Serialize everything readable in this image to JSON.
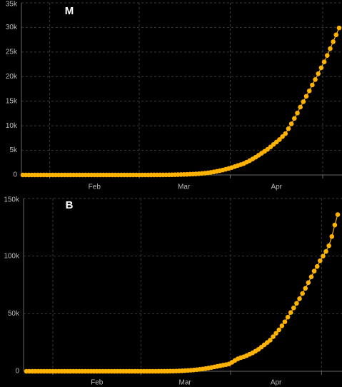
{
  "chart_data": [
    {
      "type": "line",
      "title": "M",
      "color": "#ffb300",
      "grid": true,
      "ylim": [
        0,
        35000
      ],
      "yticks": [
        0,
        {
          "value": 5000,
          "label": "5k"
        },
        {
          "value": 10000,
          "label": "10k"
        },
        {
          "value": 15000,
          "label": "15k"
        },
        {
          "value": 20000,
          "label": "20k"
        },
        {
          "value": 25000,
          "label": "25k"
        },
        {
          "value": 30000,
          "label": "30k"
        },
        {
          "value": 35000,
          "label": "35k"
        }
      ],
      "categories": [
        null,
        null,
        null,
        null,
        null,
        null,
        null,
        null,
        null,
        null,
        null,
        null,
        null,
        null,
        null,
        null,
        null,
        null,
        null,
        null,
        null,
        null,
        null,
        null,
        "Feb",
        null,
        null,
        null,
        null,
        null,
        null,
        null,
        null,
        null,
        null,
        null,
        null,
        null,
        null,
        null,
        null,
        null,
        null,
        null,
        null,
        null,
        null,
        null,
        null,
        null,
        null,
        null,
        null,
        null,
        "Mar",
        null,
        null,
        null,
        null,
        null,
        null,
        null,
        null,
        null,
        null,
        null,
        null,
        null,
        null,
        null,
        null,
        null,
        null,
        null,
        null,
        null,
        null,
        null,
        null,
        null,
        null,
        null,
        null,
        null,
        null,
        "Apr",
        null,
        null,
        null,
        null,
        null,
        null,
        null,
        null,
        null,
        null,
        null,
        null,
        null,
        null,
        null,
        null,
        null,
        null,
        null,
        null,
        null
      ],
      "values": [
        0,
        0,
        0,
        0,
        0,
        0,
        0,
        0,
        0,
        0,
        0,
        0,
        0,
        0,
        0,
        0,
        0,
        0,
        0,
        0,
        0,
        0,
        0,
        0,
        0,
        0,
        0,
        0,
        0,
        0,
        0,
        0,
        0,
        0,
        0,
        0,
        0,
        0,
        0,
        0,
        0,
        0,
        1,
        2,
        3,
        5,
        8,
        12,
        18,
        25,
        35,
        50,
        65,
        80,
        100,
        120,
        150,
        180,
        215,
        255,
        300,
        360,
        430,
        520,
        620,
        730,
        860,
        1000,
        1150,
        1320,
        1500,
        1700,
        1900,
        2100,
        2300,
        2600,
        2900,
        3250,
        3600,
        4000,
        4400,
        4800,
        5200,
        5700,
        6200,
        6700,
        7200,
        7800,
        8400,
        9400,
        10400,
        11500,
        12600,
        13800,
        14900,
        16000,
        17100,
        18300,
        19400,
        20600,
        21800,
        23000,
        24300,
        25700,
        27100,
        28500,
        29900
      ]
    },
    {
      "type": "line",
      "title": "B",
      "color": "#ffb300",
      "grid": true,
      "ylim": [
        0,
        150000
      ],
      "yticks": [
        0,
        {
          "value": 50000,
          "label": "50k"
        },
        {
          "value": 100000,
          "label": "100k"
        },
        {
          "value": 150000,
          "label": "150k"
        }
      ],
      "categories": [
        null,
        null,
        null,
        null,
        null,
        null,
        null,
        null,
        null,
        null,
        null,
        null,
        null,
        null,
        null,
        null,
        null,
        null,
        null,
        null,
        null,
        null,
        null,
        null,
        "Feb",
        null,
        null,
        null,
        null,
        null,
        null,
        null,
        null,
        null,
        null,
        null,
        null,
        null,
        null,
        null,
        null,
        null,
        null,
        null,
        null,
        null,
        null,
        null,
        null,
        null,
        null,
        null,
        null,
        null,
        "Mar",
        null,
        null,
        null,
        null,
        null,
        null,
        null,
        null,
        null,
        null,
        null,
        null,
        null,
        null,
        null,
        null,
        null,
        null,
        null,
        null,
        null,
        null,
        null,
        null,
        null,
        null,
        null,
        null,
        null,
        null,
        "Apr",
        null,
        null,
        null,
        null,
        null,
        null,
        null,
        null,
        null,
        null,
        null,
        null,
        null,
        null,
        null,
        null,
        null,
        null,
        null,
        null,
        null
      ],
      "values": [
        0,
        0,
        0,
        0,
        0,
        0,
        0,
        0,
        0,
        0,
        0,
        0,
        0,
        0,
        0,
        0,
        0,
        0,
        0,
        0,
        0,
        0,
        0,
        0,
        0,
        0,
        0,
        0,
        0,
        0,
        0,
        0,
        0,
        0,
        0,
        0,
        0,
        0,
        0,
        0,
        0,
        0,
        0,
        2,
        5,
        10,
        20,
        40,
        70,
        110,
        160,
        230,
        320,
        430,
        560,
        720,
        900,
        1100,
        1400,
        1700,
        2000,
        2400,
        2800,
        3300,
        3800,
        4300,
        4800,
        5300,
        5800,
        6400,
        7800,
        9400,
        10800,
        11800,
        12600,
        13600,
        14800,
        16000,
        17500,
        19000,
        21000,
        23000,
        25000,
        27000,
        30000,
        33000,
        36000,
        39500,
        43000,
        47000,
        51000,
        55000,
        59000,
        63000,
        67500,
        72000,
        77000,
        82000,
        87000,
        91000,
        96000,
        100000,
        104000,
        109000,
        117000,
        127000,
        136000
      ]
    }
  ]
}
